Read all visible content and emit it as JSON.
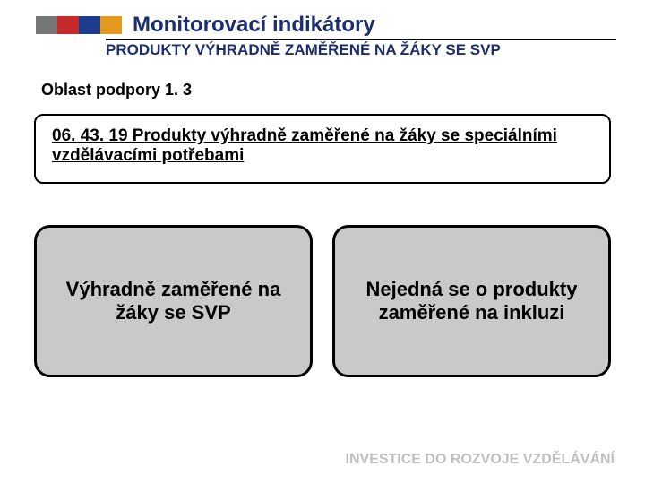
{
  "colors": {
    "block1": "#777777",
    "block2": "#c52a2a",
    "block3": "#1e3d8f",
    "block4": "#e39a1e",
    "title": "#1b2e6f",
    "subtitle": "#1b2e6f",
    "section_label": "#000000",
    "indicator_text": "#000000",
    "pill_bg": "#c9c9c9",
    "pill_text": "#000000",
    "footer": "#bfbfbf"
  },
  "header": {
    "title": "Monitorovací indikátory",
    "subtitle": "PRODUKTY VÝHRADNĚ ZAMĚŘENÉ NA ŽÁKY SE SVP"
  },
  "section_label": "Oblast podpory  1. 3",
  "indicator": {
    "text": "06. 43. 19 Produkty výhradně zaměřené na žáky se speciálními vzdělávacími potřebami"
  },
  "pills": [
    {
      "text": "Výhradně zaměřené na žáky se SVP"
    },
    {
      "text": "Nejedná se o produkty zaměřené na inkluzi"
    }
  ],
  "footer": "INVESTICE DO ROZVOJE VZDĚLÁVÁNÍ"
}
